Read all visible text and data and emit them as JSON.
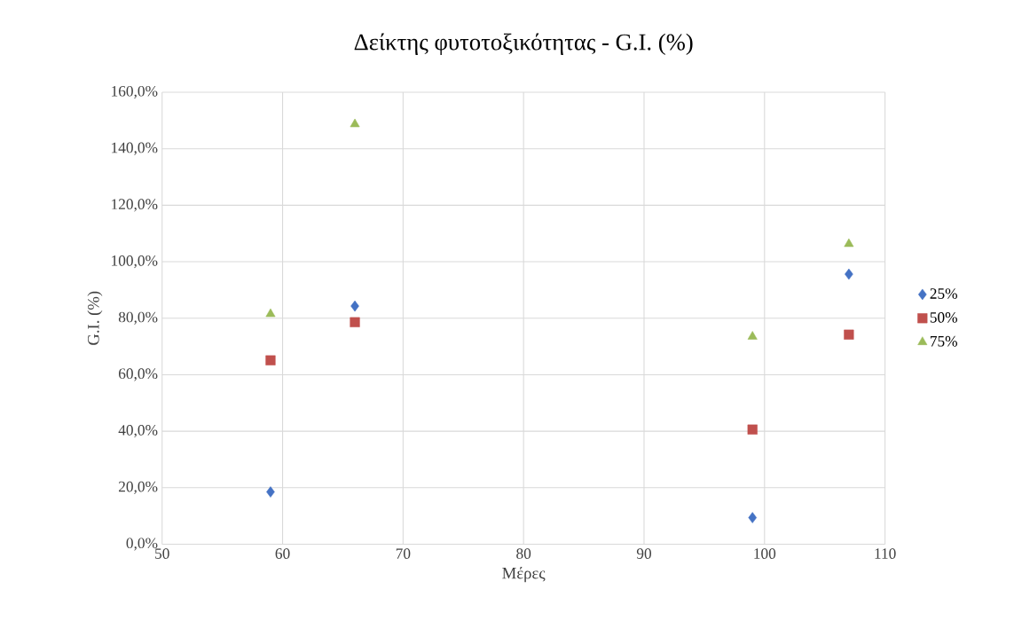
{
  "chart_data": {
    "type": "scatter",
    "title": "Δείκτης φυτοτοξικότητας - G.I. (%)",
    "xlabel": "Μέρες",
    "ylabel": "G.I. (%)",
    "x": [
      59,
      66,
      99,
      107
    ],
    "series": [
      {
        "name": "25%",
        "color": "#4472c4",
        "marker": "diamond",
        "values": [
          18.5,
          84.3,
          9.4,
          95.6
        ]
      },
      {
        "name": "50%",
        "color": "#c0504d",
        "marker": "square",
        "values": [
          65.1,
          78.6,
          40.6,
          74.2
        ]
      },
      {
        "name": "75%",
        "color": "#9bbb59",
        "marker": "triangle",
        "values": [
          81.5,
          148.7,
          73.5,
          106.3
        ]
      }
    ],
    "xlim": [
      50,
      110
    ],
    "xticks": [
      50,
      60,
      70,
      80,
      90,
      100,
      110
    ],
    "ylim": [
      0,
      160
    ],
    "yticks": [
      {
        "value": 0,
        "label": "0,0%"
      },
      {
        "value": 20,
        "label": "20,0%"
      },
      {
        "value": 40,
        "label": "40,0%"
      },
      {
        "value": 60,
        "label": "60,0%"
      },
      {
        "value": 80,
        "label": "80,0%"
      },
      {
        "value": 100,
        "label": "100,0%"
      },
      {
        "value": 120,
        "label": "120,0%"
      },
      {
        "value": 140,
        "label": "140,0%"
      },
      {
        "value": 160,
        "label": "160,0%"
      }
    ],
    "grid": true,
    "legend": "right"
  }
}
